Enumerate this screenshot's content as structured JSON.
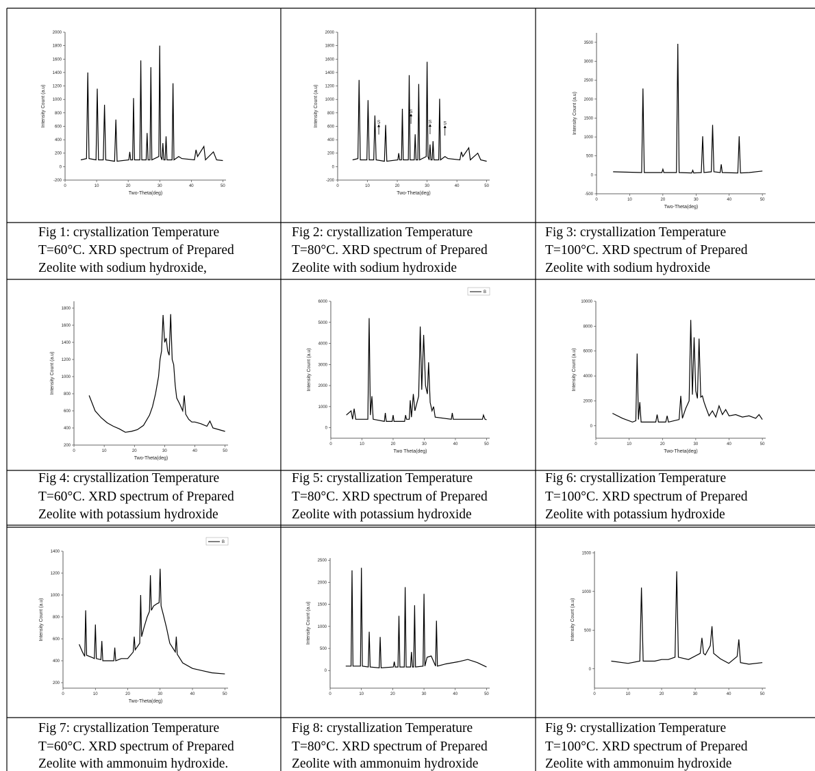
{
  "chart_data": [
    {
      "type": "line",
      "xlabel": "Two-Theta(deg)",
      "ylabel": "Intensity Count (a.u)",
      "xlim": [
        0,
        51
      ],
      "xticks": [
        0,
        10,
        20,
        30,
        40,
        50
      ],
      "ylim": [
        -200,
        2000
      ],
      "yticks": [
        -200,
        0,
        200,
        400,
        600,
        800,
        1000,
        1200,
        1400,
        1600,
        1800,
        2000
      ],
      "x": [
        5,
        6.8,
        7.2,
        7.6,
        9.8,
        10.2,
        10.6,
        12.1,
        12.5,
        12.9,
        15.7,
        16.1,
        16.5,
        20.2,
        20.5,
        20.8,
        21.4,
        21.7,
        22.0,
        23.7,
        24.0,
        24.3,
        25.7,
        26.0,
        26.3,
        26.9,
        27.2,
        27.5,
        29.7,
        30.0,
        30.3,
        30.7,
        31.0,
        31.3,
        31.7,
        32.0,
        32.3,
        33.9,
        34.2,
        34.5,
        36,
        37,
        41,
        41.5,
        42,
        44,
        44.5,
        47,
        48,
        50
      ],
      "series": [
        {
          "color": "#000000",
          "values": [
            100,
            120,
            1400,
            120,
            100,
            1160,
            100,
            100,
            920,
            100,
            80,
            700,
            80,
            100,
            220,
            100,
            100,
            1020,
            100,
            100,
            1580,
            100,
            100,
            500,
            100,
            100,
            1480,
            100,
            150,
            1800,
            150,
            100,
            350,
            100,
            100,
            450,
            100,
            100,
            1240,
            100,
            150,
            120,
            100,
            250,
            150,
            300,
            100,
            220,
            100,
            90
          ]
        }
      ]
    },
    {
      "type": "line",
      "xlabel": "Two-Theta(deg)",
      "ylabel": "Intensity Count (a.u)",
      "xlim": [
        0,
        51
      ],
      "xticks": [
        0,
        10,
        20,
        30,
        40,
        50
      ],
      "ylim": [
        -200,
        2000
      ],
      "yticks": [
        -200,
        0,
        200,
        400,
        600,
        800,
        1000,
        1200,
        1400,
        1600,
        1800,
        2000
      ],
      "x": [
        5,
        6.8,
        7.2,
        7.6,
        9.8,
        10.2,
        10.6,
        12.1,
        12.5,
        12.9,
        15.7,
        16.1,
        16.5,
        20.2,
        20.5,
        20.8,
        21.4,
        21.7,
        22.0,
        23.7,
        24.0,
        24.3,
        25.7,
        26.0,
        26.3,
        26.9,
        27.2,
        27.5,
        29.7,
        30.0,
        30.3,
        30.7,
        31.0,
        31.3,
        31.7,
        32.0,
        32.3,
        33.9,
        34.2,
        34.5,
        36,
        37,
        41,
        41.5,
        42,
        44,
        44.5,
        47,
        48,
        50
      ],
      "series": [
        {
          "color": "#000000",
          "values": [
            100,
            120,
            1290,
            100,
            100,
            990,
            100,
            100,
            760,
            100,
            80,
            620,
            80,
            100,
            200,
            100,
            100,
            860,
            100,
            100,
            1360,
            100,
            100,
            480,
            100,
            100,
            1230,
            100,
            150,
            1560,
            150,
            100,
            330,
            100,
            100,
            380,
            100,
            100,
            1010,
            100,
            150,
            120,
            100,
            220,
            150,
            280,
            100,
            200,
            100,
            80
          ]
        }
      ],
      "annotations": [
        {
          "text": "S",
          "x": 13.8,
          "y": 640
        },
        {
          "text": "S",
          "x": 24.6,
          "y": 800
        },
        {
          "text": "S",
          "x": 31,
          "y": 645
        },
        {
          "text": "S",
          "x": 36,
          "y": 625
        }
      ]
    },
    {
      "type": "line",
      "xlabel": "Two-Theta(deg)",
      "ylabel": "Intensity Count (a.u)",
      "xlim": [
        0,
        51
      ],
      "xticks": [
        0,
        10,
        20,
        30,
        40,
        50
      ],
      "ylim": [
        -500,
        3750
      ],
      "yticks": [
        -500,
        0,
        500,
        1000,
        1500,
        2000,
        2500,
        3000,
        3500
      ],
      "x": [
        5,
        13.6,
        14.0,
        14.4,
        19.7,
        20.0,
        20.3,
        24.1,
        24.5,
        24.9,
        28.7,
        29,
        29.3,
        31.6,
        32.0,
        32.4,
        34.6,
        35.0,
        35.4,
        37.3,
        37.6,
        37.9,
        42.6,
        43.0,
        43.4,
        46,
        50
      ],
      "series": [
        {
          "color": "#000000",
          "values": [
            80,
            60,
            2280,
            60,
            60,
            150,
            60,
            60,
            3460,
            60,
            50,
            120,
            50,
            60,
            1020,
            60,
            80,
            1320,
            80,
            60,
            280,
            60,
            50,
            1020,
            50,
            60,
            100
          ]
        }
      ]
    },
    {
      "type": "line",
      "xlabel": "Two-Theta(deg)",
      "ylabel": "Intensity Count (a.u)",
      "xlim": [
        0,
        51
      ],
      "xticks": [
        0,
        10,
        20,
        30,
        40,
        50
      ],
      "ylim": [
        200,
        1880
      ],
      "yticks": [
        200,
        400,
        600,
        800,
        1000,
        1200,
        1400,
        1600,
        1800
      ],
      "x": [
        5,
        7,
        9,
        11,
        13,
        15,
        17,
        19,
        21,
        23,
        25,
        26,
        27,
        28,
        28.5,
        29,
        29.5,
        30,
        30.5,
        31,
        31.5,
        32,
        32.5,
        33,
        33.5,
        34,
        35,
        36,
        36.5,
        37,
        38,
        39,
        40,
        42,
        44,
        45,
        46,
        48,
        50
      ],
      "series": [
        {
          "color": "#000000",
          "values": [
            780,
            600,
            520,
            460,
            420,
            390,
            350,
            360,
            380,
            430,
            550,
            650,
            800,
            1000,
            1200,
            1300,
            1720,
            1400,
            1450,
            1300,
            1250,
            1730,
            1200,
            1140,
            900,
            750,
            680,
            600,
            780,
            560,
            500,
            470,
            470,
            450,
            420,
            480,
            400,
            380,
            360
          ]
        }
      ]
    },
    {
      "type": "line",
      "xlabel": "Two Theta(deg)",
      "ylabel": "Intensity Count (a.u)",
      "xlim": [
        0,
        51
      ],
      "xticks": [
        0,
        10,
        20,
        30,
        40,
        50
      ],
      "ylim": [
        -500,
        6000
      ],
      "yticks": [
        0,
        1000,
        2000,
        3000,
        4000,
        5000,
        6000
      ],
      "legend": "upper right",
      "x": [
        5,
        6.5,
        7,
        7.5,
        8,
        11.9,
        12.3,
        12.7,
        13.2,
        13.6,
        17.2,
        17.5,
        17.8,
        19.7,
        20,
        20.3,
        23.7,
        24,
        24.3,
        25.2,
        25.5,
        25.9,
        26.5,
        27,
        28.2,
        28.7,
        29.2,
        29.8,
        30.4,
        31,
        31.4,
        31.9,
        32.5,
        33,
        33.5,
        38.7,
        39,
        39.3,
        44,
        48.7,
        49,
        49.5,
        50
      ],
      "series": [
        {
          "name": "B",
          "color": "#000000",
          "values": [
            600,
            800,
            400,
            900,
            400,
            400,
            5200,
            600,
            1500,
            400,
            300,
            700,
            300,
            300,
            600,
            300,
            300,
            600,
            400,
            400,
            1300,
            500,
            1600,
            800,
            1500,
            4800,
            1800,
            4400,
            2000,
            1600,
            3100,
            1200,
            800,
            1000,
            500,
            400,
            700,
            400,
            400,
            400,
            600,
            400,
            380
          ]
        }
      ]
    },
    {
      "type": "line",
      "xlabel": "Two-Theta(deg)",
      "ylabel": "Intensity Count (a.u)",
      "xlim": [
        0,
        51
      ],
      "xticks": [
        0,
        10,
        20,
        30,
        40,
        50
      ],
      "ylim": [
        -1000,
        10000
      ],
      "yticks": [
        0,
        2000,
        4000,
        6000,
        8000,
        10000
      ],
      "x": [
        5,
        8,
        11,
        12,
        12.4,
        12.8,
        13.2,
        13.6,
        16,
        18,
        18.4,
        18.8,
        21,
        21.4,
        21.8,
        25,
        25.5,
        26,
        27,
        28,
        28.5,
        29,
        29.5,
        30,
        30.5,
        31,
        31.5,
        32,
        32.5,
        33,
        34,
        35,
        36,
        37,
        38,
        39,
        40,
        42,
        44,
        46,
        48,
        49,
        50
      ],
      "series": [
        {
          "color": "#000000",
          "values": [
            1000,
            600,
            300,
            400,
            5800,
            500,
            1900,
            300,
            300,
            300,
            900,
            300,
            300,
            800,
            300,
            500,
            2400,
            600,
            1400,
            2000,
            8500,
            2500,
            7100,
            2800,
            2200,
            7000,
            2300,
            2400,
            1900,
            1500,
            800,
            1200,
            700,
            1600,
            900,
            1300,
            800,
            900,
            700,
            800,
            600,
            900,
            500
          ]
        }
      ]
    },
    {
      "type": "line",
      "xlabel": "Two-Theta(deg)",
      "ylabel": "Intensity Count (a.u)",
      "xlim": [
        0,
        51
      ],
      "xticks": [
        0,
        10,
        20,
        30,
        40,
        50
      ],
      "ylim": [
        150,
        1400
      ],
      "yticks": [
        200,
        400,
        600,
        800,
        1000,
        1200,
        1400
      ],
      "legend": "upper right",
      "x": [
        5,
        6,
        6.7,
        7.0,
        7.3,
        9,
        9.7,
        10,
        10.3,
        11.7,
        12,
        12.3,
        15.7,
        16,
        16.3,
        18,
        20,
        21.7,
        22,
        22.3,
        23.7,
        24,
        24.3,
        25,
        26,
        26.7,
        27,
        27.3,
        28,
        29,
        29.7,
        30,
        30.3,
        31,
        32,
        33,
        34.7,
        35,
        35.3,
        37,
        40,
        43,
        46,
        50
      ],
      "series": [
        {
          "name": "B",
          "color": "#000000",
          "values": [
            550,
            480,
            440,
            860,
            450,
            430,
            420,
            730,
            420,
            410,
            580,
            400,
            400,
            520,
            400,
            420,
            420,
            480,
            620,
            500,
            560,
            1000,
            620,
            700,
            800,
            850,
            1180,
            860,
            900,
            920,
            930,
            1240,
            900,
            820,
            700,
            560,
            480,
            620,
            460,
            380,
            330,
            310,
            290,
            280
          ]
        }
      ]
    },
    {
      "type": "line",
      "ylabel": "Intensity Count (a.u)",
      "xlim": [
        0,
        51
      ],
      "xticks": [
        0,
        10,
        20,
        30,
        40,
        50
      ],
      "ylim": [
        -400,
        2550
      ],
      "yticks": [
        0,
        500,
        1000,
        1500,
        2000,
        2500
      ],
      "x": [
        5,
        6.7,
        7.0,
        7.3,
        9.7,
        10,
        10.3,
        12.2,
        12.5,
        12.8,
        15.7,
        16,
        16.3,
        20.2,
        20.5,
        20.8,
        21.7,
        22,
        22.3,
        23.7,
        24,
        24.3,
        25.7,
        26,
        26.3,
        26.7,
        27,
        27.3,
        29.7,
        30,
        30.3,
        31,
        32.3,
        33.7,
        34,
        34.3,
        37,
        41,
        44,
        47,
        50
      ],
      "series": [
        {
          "color": "#000000",
          "values": [
            100,
            100,
            2270,
            100,
            100,
            2330,
            100,
            80,
            880,
            80,
            60,
            760,
            60,
            80,
            200,
            80,
            80,
            1240,
            80,
            80,
            1890,
            80,
            80,
            420,
            80,
            80,
            1480,
            80,
            100,
            1740,
            100,
            300,
            330,
            100,
            1130,
            100,
            150,
            200,
            250,
            180,
            80
          ]
        }
      ]
    },
    {
      "type": "line",
      "ylabel": "Intensity Count (a.u)",
      "xlim": [
        0,
        51
      ],
      "xticks": [
        0,
        10,
        20,
        30,
        40,
        50
      ],
      "ylim": [
        -250,
        1520
      ],
      "yticks": [
        0,
        500,
        1000,
        1500
      ],
      "x": [
        5,
        10,
        13.5,
        14,
        14.5,
        18,
        20,
        22,
        24,
        24.5,
        25,
        28,
        31.5,
        32,
        32.5,
        33,
        34.5,
        35,
        35.5,
        37.5,
        40,
        42.5,
        43,
        43.5,
        46,
        50
      ],
      "series": [
        {
          "color": "#000000",
          "values": [
            100,
            70,
            100,
            1050,
            100,
            100,
            120,
            120,
            150,
            1260,
            150,
            120,
            200,
            400,
            200,
            180,
            300,
            550,
            200,
            130,
            70,
            160,
            380,
            80,
            60,
            80
          ]
        }
      ]
    }
  ],
  "captions": [
    [
      "Fig 1: crystallization Temperature",
      "T=60°C. XRD spectrum of Prepared",
      "Zeolite with sodium hydroxide,"
    ],
    [
      "Fig 2: crystallization Temperature",
      "T=80°C. XRD spectrum of Prepared",
      "Zeolite with sodium hydroxide"
    ],
    [
      "Fig 3: crystallization Temperature",
      "T=100°C. XRD spectrum of Prepared",
      "Zeolite with sodium hydroxide"
    ],
    [
      "Fig 4: crystallization Temperature",
      "T=60°C. XRD spectrum of Prepared",
      "Zeolite with potassium hydroxide"
    ],
    [
      "Fig 5: crystallization Temperature",
      "T=80°C. XRD spectrum of Prepared",
      "Zeolite with potassium hydroxide"
    ],
    [
      "Fig 6: crystallization Temperature",
      "T=100°C. XRD spectrum of Prepared",
      "Zeolite with potassium hydroxide"
    ],
    [
      "Fig 7: crystallization Temperature",
      "T=60°C. XRD spectrum of Prepared",
      "Zeolite with ammonuim hydroxide."
    ],
    [
      "Fig 8: crystallization Temperature",
      "T=80°C. XRD spectrum of Prepared",
      "Zeolite with ammonuim hydroxide"
    ],
    [
      "Fig 9: crystallization Temperature",
      "T=100°C. XRD spectrum of Prepared",
      "Zeolite with ammonuim hydroxide"
    ]
  ]
}
